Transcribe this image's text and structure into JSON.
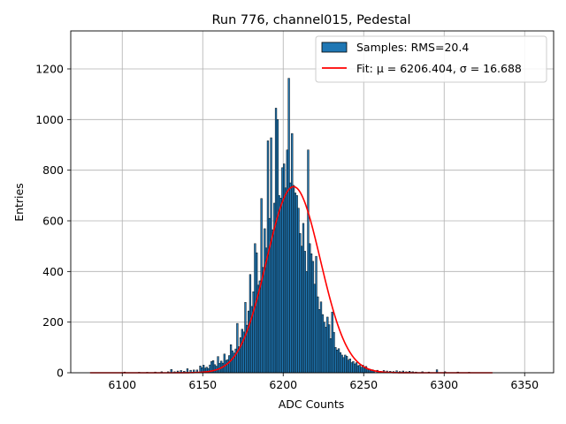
{
  "chart_data": {
    "type": "bar",
    "title": "Run 776, channel015, Pedestal",
    "xlabel": "ADC Counts",
    "ylabel": "Entries",
    "xlim": [
      6068,
      6368
    ],
    "ylim": [
      0,
      1350
    ],
    "xticks": [
      6100,
      6150,
      6200,
      6250,
      6300,
      6350
    ],
    "yticks": [
      0,
      200,
      400,
      600,
      800,
      1000,
      1200
    ],
    "grid": true,
    "legend_position": "top-right",
    "legend": {
      "samples_label": "Samples: RMS=20.4",
      "fit_label": "Fit: μ = 6206.404, σ = 16.688"
    },
    "colors": {
      "bar_fill": "#1f77b4",
      "bar_edge": "#000000",
      "fit_line": "#ff0000",
      "grid": "#b0b0b0"
    },
    "histogram": {
      "bin_width": 1,
      "bins": [
        [
          6101,
          3
        ],
        [
          6110,
          2
        ],
        [
          6115,
          2
        ],
        [
          6120,
          3
        ],
        [
          6124,
          4
        ],
        [
          6128,
          4
        ],
        [
          6130,
          13
        ],
        [
          6132,
          4
        ],
        [
          6134,
          7
        ],
        [
          6136,
          9
        ],
        [
          6138,
          6
        ],
        [
          6140,
          16
        ],
        [
          6142,
          10
        ],
        [
          6144,
          11
        ],
        [
          6146,
          11
        ],
        [
          6148,
          27
        ],
        [
          6149,
          20
        ],
        [
          6150,
          30
        ],
        [
          6151,
          18
        ],
        [
          6152,
          22
        ],
        [
          6153,
          17
        ],
        [
          6154,
          31
        ],
        [
          6155,
          45
        ],
        [
          6156,
          48
        ],
        [
          6157,
          32
        ],
        [
          6158,
          26
        ],
        [
          6159,
          64
        ],
        [
          6160,
          37
        ],
        [
          6161,
          46
        ],
        [
          6162,
          38
        ],
        [
          6163,
          74
        ],
        [
          6164,
          49
        ],
        [
          6165,
          52
        ],
        [
          6166,
          68
        ],
        [
          6167,
          111
        ],
        [
          6168,
          87
        ],
        [
          6169,
          78
        ],
        [
          6170,
          94
        ],
        [
          6171,
          195
        ],
        [
          6172,
          103
        ],
        [
          6173,
          139
        ],
        [
          6174,
          172
        ],
        [
          6175,
          161
        ],
        [
          6176,
          278
        ],
        [
          6177,
          188
        ],
        [
          6178,
          244
        ],
        [
          6179,
          388
        ],
        [
          6180,
          262
        ],
        [
          6181,
          320
        ],
        [
          6182,
          510
        ],
        [
          6183,
          474
        ],
        [
          6184,
          346
        ],
        [
          6185,
          363
        ],
        [
          6186,
          688
        ],
        [
          6187,
          416
        ],
        [
          6188,
          569
        ],
        [
          6189,
          493
        ],
        [
          6190,
          916
        ],
        [
          6191,
          610
        ],
        [
          6192,
          928
        ],
        [
          6193,
          565
        ],
        [
          6194,
          670
        ],
        [
          6195,
          1045
        ],
        [
          6196,
          1000
        ],
        [
          6197,
          700
        ],
        [
          6198,
          690
        ],
        [
          6199,
          810
        ],
        [
          6200,
          825
        ],
        [
          6201,
          730
        ],
        [
          6202,
          880
        ],
        [
          6203,
          1163
        ],
        [
          6204,
          750
        ],
        [
          6205,
          945
        ],
        [
          6206,
          740
        ],
        [
          6207,
          710
        ],
        [
          6208,
          700
        ],
        [
          6209,
          650
        ],
        [
          6210,
          550
        ],
        [
          6211,
          500
        ],
        [
          6212,
          590
        ],
        [
          6213,
          480
        ],
        [
          6214,
          400
        ],
        [
          6215,
          880
        ],
        [
          6216,
          510
        ],
        [
          6217,
          470
        ],
        [
          6218,
          440
        ],
        [
          6219,
          350
        ],
        [
          6220,
          460
        ],
        [
          6221,
          300
        ],
        [
          6222,
          250
        ],
        [
          6223,
          280
        ],
        [
          6224,
          230
        ],
        [
          6225,
          200
        ],
        [
          6226,
          180
        ],
        [
          6227,
          220
        ],
        [
          6228,
          190
        ],
        [
          6229,
          135
        ],
        [
          6230,
          240
        ],
        [
          6231,
          160
        ],
        [
          6232,
          100
        ],
        [
          6233,
          90
        ],
        [
          6234,
          95
        ],
        [
          6235,
          80
        ],
        [
          6236,
          70
        ],
        [
          6237,
          60
        ],
        [
          6238,
          70
        ],
        [
          6239,
          65
        ],
        [
          6240,
          50
        ],
        [
          6241,
          55
        ],
        [
          6242,
          40
        ],
        [
          6243,
          45
        ],
        [
          6244,
          35
        ],
        [
          6245,
          40
        ],
        [
          6246,
          28
        ],
        [
          6247,
          30
        ],
        [
          6248,
          22
        ],
        [
          6249,
          30
        ],
        [
          6250,
          18
        ],
        [
          6251,
          25
        ],
        [
          6252,
          12
        ],
        [
          6253,
          15
        ],
        [
          6254,
          10
        ],
        [
          6255,
          12
        ],
        [
          6256,
          8
        ],
        [
          6258,
          10
        ],
        [
          6260,
          6
        ],
        [
          6262,
          9
        ],
        [
          6264,
          7
        ],
        [
          6266,
          6
        ],
        [
          6268,
          5
        ],
        [
          6270,
          8
        ],
        [
          6272,
          5
        ],
        [
          6274,
          7
        ],
        [
          6276,
          4
        ],
        [
          6278,
          6
        ],
        [
          6280,
          4
        ],
        [
          6282,
          3
        ],
        [
          6286,
          4
        ],
        [
          6290,
          3
        ],
        [
          6295,
          12
        ],
        [
          6300,
          4
        ],
        [
          6308,
          3
        ],
        [
          6315,
          2
        ]
      ]
    },
    "fit": {
      "mu": 6206.404,
      "sigma": 16.688,
      "amplitude": 735,
      "x_range": [
        6080,
        6330
      ]
    }
  }
}
